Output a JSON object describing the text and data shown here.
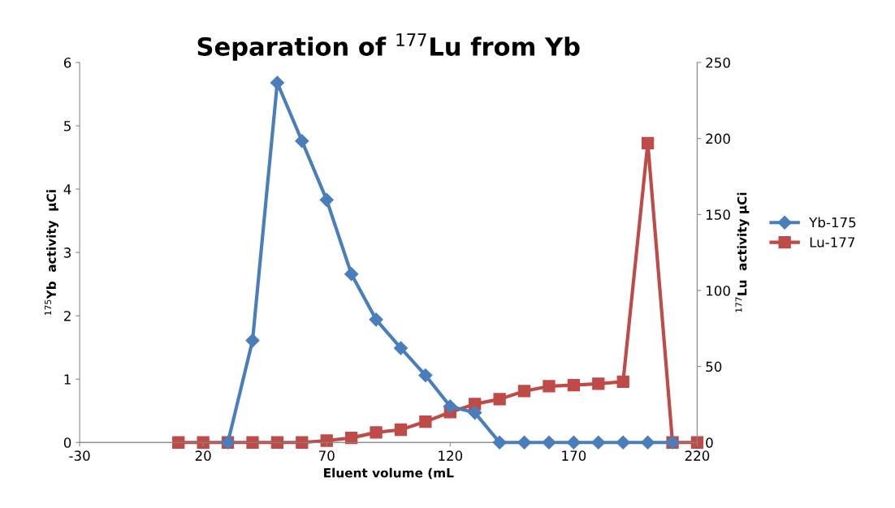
{
  "chart_data": {
    "type": "line",
    "title": "Separation of $^{177}$Lu from Yb",
    "xlabel": "Eluent volume (mL",
    "ylabel": "$^{175}$Yb  activity  µCi",
    "y2label": "$^{177}$Lu  activity µCi",
    "xlim": [
      -30,
      220
    ],
    "xticks": [
      -30,
      20,
      70,
      120,
      170,
      220
    ],
    "ylim": [
      0,
      6
    ],
    "yticks": [
      0,
      1,
      2,
      3,
      4,
      5,
      6
    ],
    "y2lim": [
      0,
      250
    ],
    "y2ticks": [
      0,
      50,
      100,
      150,
      200,
      250
    ],
    "grid": false,
    "legend": "right",
    "line_style": "solid",
    "series": [
      {
        "name": "Yb-175",
        "color": "#4a7ebb",
        "marker": "diamond",
        "x": [
          30,
          40,
          50,
          60,
          70,
          80,
          90,
          100,
          110,
          120,
          130,
          140,
          150,
          160,
          170,
          180,
          190,
          200,
          210
        ],
        "values": [
          0,
          1.61,
          5.68,
          4.76,
          3.83,
          2.66,
          1.94,
          1.49,
          1.06,
          0.57,
          0.47,
          0,
          0,
          0,
          0,
          0,
          0,
          0,
          0
        ]
      },
      {
        "name": "Lu-177",
        "color": "#be4b48",
        "marker": "square",
        "axis": "y2",
        "x": [
          10,
          20,
          30,
          40,
          50,
          60,
          70,
          80,
          90,
          100,
          110,
          120,
          130,
          140,
          150,
          160,
          170,
          180,
          190,
          200,
          210,
          220
        ],
        "values": [
          0,
          0,
          0,
          0,
          0,
          0,
          1.2,
          3,
          6.6,
          8.4,
          13.7,
          19.9,
          25.3,
          28.5,
          33.8,
          37,
          37.7,
          38.6,
          40,
          197,
          0,
          0
        ]
      }
    ]
  }
}
